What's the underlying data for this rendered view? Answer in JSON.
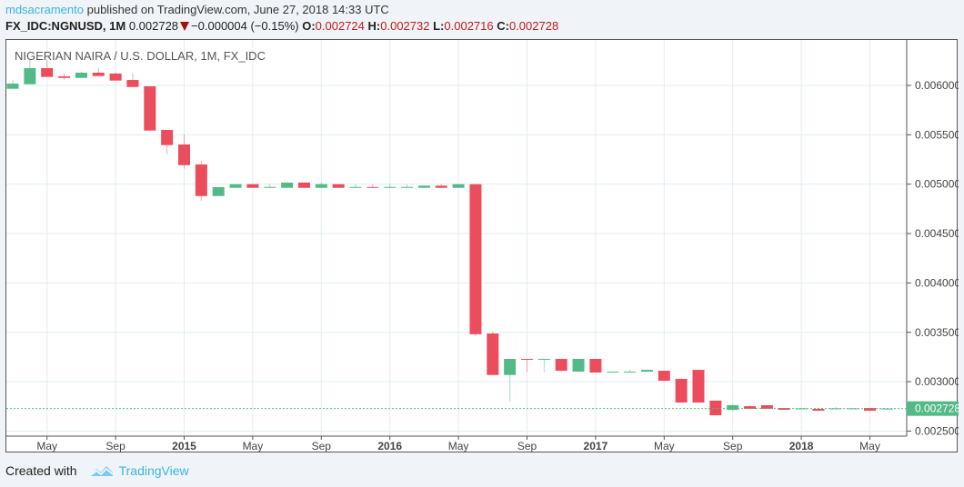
{
  "header": {
    "user": "mdsacramento",
    "published": "published on TradingView.com, June 27, 2018 14:33 UTC",
    "symbol": "FX_IDC:NGNUSD, 1M",
    "last": "0.002728",
    "change": "−0.000004 (−0.15%)",
    "o_label": "O:",
    "o": "0.002724",
    "h_label": "H:",
    "h": "0.002732",
    "l_label": "L:",
    "l": "0.002716",
    "c_label": "C:",
    "c": "0.002728",
    "direction_icon": "triangle-down-icon"
  },
  "footer": {
    "created_with": "Created with",
    "brand": "TradingView",
    "logo_icon": "tradingview-cloud-icon"
  },
  "colors": {
    "up": "#53b987",
    "down": "#eb4d5c",
    "grid": "#e1ecf2",
    "last_price": "#53b987"
  },
  "chart_data": {
    "type": "candlestick",
    "title": "NIGERIAN NAIRA / U.S. DOLLAR, 1M, FX_IDC",
    "interval": "1M",
    "ylim": [
      0.002449,
      0.00646
    ],
    "yticks": [
      "0.002500",
      "0.003000",
      "0.003500",
      "0.004000",
      "0.004500",
      "0.005000",
      "0.005500",
      "0.006000"
    ],
    "xticks": [
      {
        "date": "2014-05",
        "label": "May",
        "bold": false
      },
      {
        "date": "2014-09",
        "label": "Sep",
        "bold": false
      },
      {
        "date": "2015-01",
        "label": "2015",
        "bold": true
      },
      {
        "date": "2015-05",
        "label": "May",
        "bold": false
      },
      {
        "date": "2015-09",
        "label": "Sep",
        "bold": false
      },
      {
        "date": "2016-01",
        "label": "2016",
        "bold": true
      },
      {
        "date": "2016-05",
        "label": "May",
        "bold": false
      },
      {
        "date": "2016-09",
        "label": "Sep",
        "bold": false
      },
      {
        "date": "2017-01",
        "label": "2017",
        "bold": true
      },
      {
        "date": "2017-05",
        "label": "May",
        "bold": false
      },
      {
        "date": "2017-09",
        "label": "Sep",
        "bold": false
      },
      {
        "date": "2018-01",
        "label": "2018",
        "bold": true
      },
      {
        "date": "2018-05",
        "label": "May",
        "bold": false
      }
    ],
    "last_price": 0.002728,
    "last_price_label": "0.002728",
    "grid": true,
    "columns": [
      "date",
      "open",
      "high",
      "low",
      "close"
    ],
    "candles": [
      [
        "2014-03",
        0.005966,
        0.006055,
        0.005966,
        0.006018
      ],
      [
        "2014-04",
        0.006012,
        0.006258,
        0.006012,
        0.006175
      ],
      [
        "2014-05",
        0.006175,
        0.00626,
        0.006086,
        0.006086
      ],
      [
        "2014-06",
        0.006092,
        0.00612,
        0.006058,
        0.006076
      ],
      [
        "2014-07",
        0.006076,
        0.00614,
        0.006076,
        0.006129
      ],
      [
        "2014-08",
        0.006129,
        0.006175,
        0.006095,
        0.006095
      ],
      [
        "2014-09",
        0.00612,
        0.006129,
        0.006049,
        0.006049
      ],
      [
        "2014-10",
        0.006055,
        0.00612,
        0.005984,
        0.005984
      ],
      [
        "2014-11",
        0.005991,
        0.005991,
        0.005543,
        0.005543
      ],
      [
        "2014-12",
        0.005549,
        0.005549,
        0.005304,
        0.005396
      ],
      [
        "2015-01",
        0.005402,
        0.005503,
        0.005156,
        0.005193
      ],
      [
        "2015-02",
        0.0052,
        0.005236,
        0.004834,
        0.00488
      ],
      [
        "2015-03",
        0.00488,
        0.00497,
        0.00488,
        0.00497
      ],
      [
        "2015-04",
        0.004963,
        0.005,
        0.004963,
        0.005
      ],
      [
        "2015-05",
        0.005,
        0.005,
        0.004963,
        0.004963
      ],
      [
        "2015-06",
        0.004963,
        0.005,
        0.004963,
        0.004972
      ],
      [
        "2015-07",
        0.004963,
        0.005016,
        0.004963,
        0.005016
      ],
      [
        "2015-08",
        0.005016,
        0.005016,
        0.004963,
        0.004963
      ],
      [
        "2015-09",
        0.004963,
        0.005016,
        0.004963,
        0.005
      ],
      [
        "2015-10",
        0.005,
        0.005,
        0.004963,
        0.004963
      ],
      [
        "2015-11",
        0.004963,
        0.005,
        0.004963,
        0.004972
      ],
      [
        "2015-12",
        0.004972,
        0.005,
        0.004963,
        0.004963
      ],
      [
        "2016-01",
        0.004963,
        0.005,
        0.004963,
        0.004972
      ],
      [
        "2016-02",
        0.004963,
        0.005,
        0.004963,
        0.004972
      ],
      [
        "2016-03",
        0.004963,
        0.004985,
        0.004963,
        0.004985
      ],
      [
        "2016-04",
        0.004985,
        0.005,
        0.004963,
        0.004963
      ],
      [
        "2016-05",
        0.004963,
        0.005,
        0.004963,
        0.005
      ],
      [
        "2016-06",
        0.005,
        0.005,
        0.003461,
        0.003481
      ],
      [
        "2016-07",
        0.003488,
        0.003507,
        0.003068,
        0.003068
      ],
      [
        "2016-08",
        0.003068,
        0.003231,
        0.002801,
        0.003231
      ],
      [
        "2016-09",
        0.003231,
        0.003231,
        0.003102,
        0.003222
      ],
      [
        "2016-10",
        0.003222,
        0.003231,
        0.003093,
        0.003231
      ],
      [
        "2016-11",
        0.003231,
        0.003231,
        0.003102,
        0.003111
      ],
      [
        "2016-12",
        0.003102,
        0.003231,
        0.003102,
        0.003231
      ],
      [
        "2017-01",
        0.003231,
        0.003231,
        0.003093,
        0.003093
      ],
      [
        "2017-02",
        0.003093,
        0.003102,
        0.003093,
        0.003102
      ],
      [
        "2017-03",
        0.003093,
        0.00312,
        0.003093,
        0.003102
      ],
      [
        "2017-04",
        0.003102,
        0.00312,
        0.003102,
        0.00312
      ],
      [
        "2017-05",
        0.003111,
        0.003111,
        0.00301,
        0.00301
      ],
      [
        "2017-06",
        0.003028,
        0.003038,
        0.002789,
        0.002789
      ],
      [
        "2017-07",
        0.00312,
        0.00312,
        0.002789,
        0.002789
      ],
      [
        "2017-08",
        0.002808,
        0.002808,
        0.00266,
        0.00266
      ],
      [
        "2017-09",
        0.002715,
        0.002771,
        0.002706,
        0.002762
      ],
      [
        "2017-10",
        0.002752,
        0.002762,
        0.002725,
        0.002725
      ],
      [
        "2017-11",
        0.002762,
        0.002762,
        0.002725,
        0.002725
      ],
      [
        "2017-12",
        0.002734,
        0.002734,
        0.002715,
        0.002715
      ],
      [
        "2018-01",
        0.002725,
        0.002736,
        0.002725,
        0.00273
      ],
      [
        "2018-02",
        0.002725,
        0.002725,
        0.002706,
        0.002706
      ],
      [
        "2018-03",
        0.002725,
        0.002743,
        0.002725,
        0.00273
      ],
      [
        "2018-04",
        0.002725,
        0.002734,
        0.002725,
        0.00273
      ],
      [
        "2018-05",
        0.002734,
        0.002734,
        0.002706,
        0.002706
      ],
      [
        "2018-06",
        0.002724,
        0.002732,
        0.002716,
        0.002728
      ]
    ]
  }
}
